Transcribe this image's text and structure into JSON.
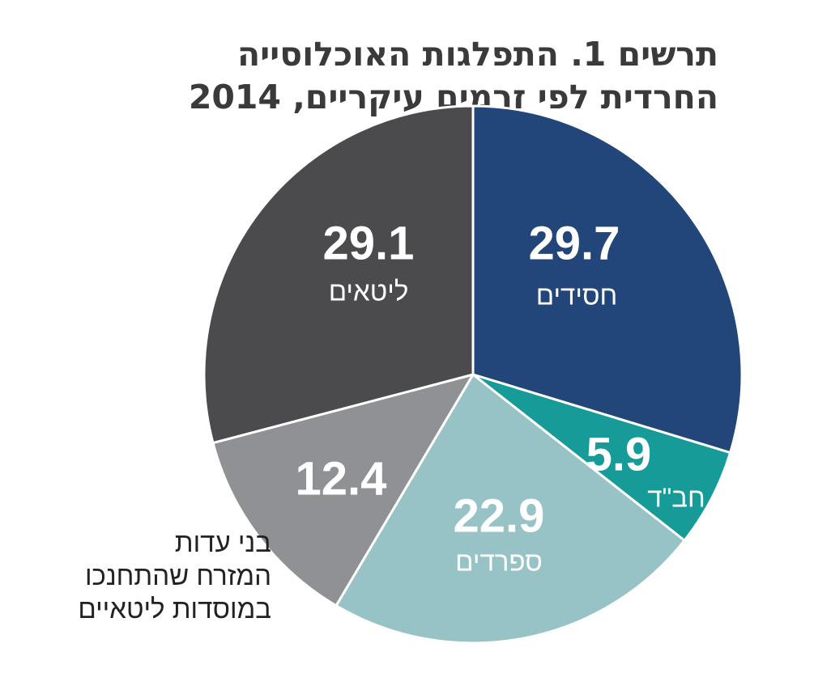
{
  "title_lines": [
    "תרשים 1. התפלגות האוכלוסייה",
    "החרדית לפי זרמים עיקריים, 2014"
  ],
  "chart_data": {
    "type": "pie",
    "title": "תרשים 1. התפלגות האוכלוסייה החרדית לפי זרמים עיקריים, 2014",
    "slices": [
      {
        "label": "חסידים",
        "value": 29.7,
        "color": "#22457a",
        "text_color": "#ffffff"
      },
      {
        "label": "חב\"ד",
        "value": 5.9,
        "color": "#169b99",
        "text_color": "#ffffff"
      },
      {
        "label": "ספרדים",
        "value": 22.9,
        "color": "#98c3c6",
        "text_color": "#ffffff"
      },
      {
        "label": "בני עדות המזרח שהתחנכו במוסדות ליטאיים",
        "label_lines": [
          "בני  עדות",
          "המזרח שהתחנכו",
          "במוסדות ליטאיים"
        ],
        "value": 12.4,
        "color": "#8f9194",
        "text_color": "#ffffff",
        "label_outside": true
      },
      {
        "label": "ליטאים",
        "value": 29.1,
        "color": "#4b4b4d",
        "text_color": "#ffffff"
      }
    ],
    "start": "top",
    "direction": "clockwise"
  }
}
